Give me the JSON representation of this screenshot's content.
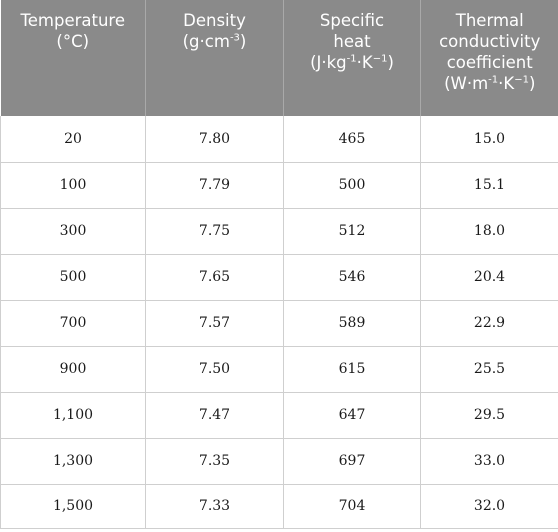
{
  "table": {
    "headers": [
      {
        "lines": [
          "Temperature",
          "(°C)"
        ]
      },
      {
        "lines": [
          "Density"
        ],
        "unit": {
          "pre": "(g·cm",
          "sup": "-3",
          "post": ")"
        }
      },
      {
        "lines": [
          "Specific",
          "heat"
        ],
        "unit": {
          "pre": "(J·kg",
          "sup": "-1",
          "mid": "·K",
          "sup2": "−1",
          "post": ")"
        }
      },
      {
        "lines": [
          "Thermal",
          "conductivity",
          "coefficient"
        ],
        "unit": {
          "pre": "(W·m",
          "sup": "-1",
          "mid": "·K",
          "sup2": "−1",
          "post": ")"
        }
      }
    ],
    "rows": [
      [
        "20",
        "7.80",
        "465",
        "15.0"
      ],
      [
        "100",
        "7.79",
        "500",
        "15.1"
      ],
      [
        "300",
        "7.75",
        "512",
        "18.0"
      ],
      [
        "500",
        "7.65",
        "546",
        "20.4"
      ],
      [
        "700",
        "7.57",
        "589",
        "22.9"
      ],
      [
        "900",
        "7.50",
        "615",
        "25.5"
      ],
      [
        "1,100",
        "7.47",
        "647",
        "29.5"
      ],
      [
        "1,300",
        "7.35",
        "697",
        "33.0"
      ],
      [
        "1,500",
        "7.33",
        "704",
        "32.0"
      ]
    ]
  },
  "colors": {
    "header_bg": "#8a8a8a",
    "header_text": "#ffffff",
    "grid": "#cfcfcf"
  }
}
